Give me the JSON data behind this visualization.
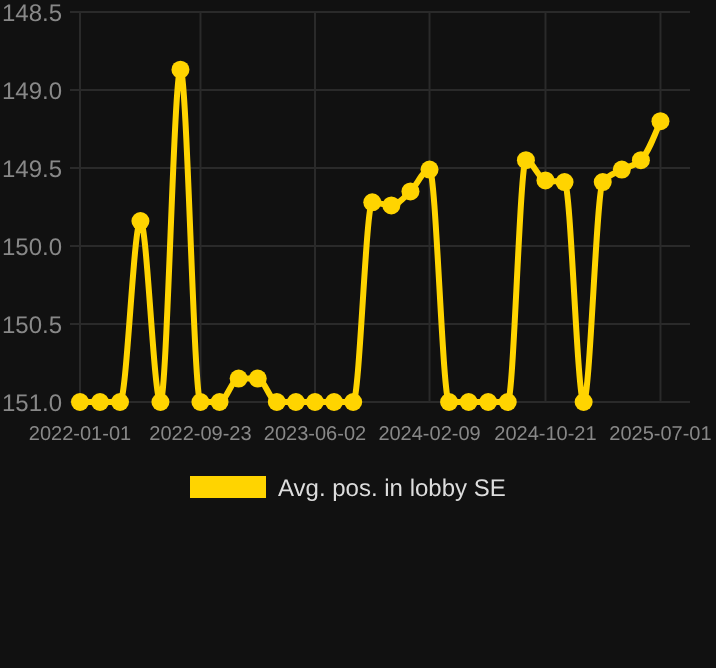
{
  "chart_data": {
    "type": "line",
    "x": [
      "2022-01-01",
      "2022-02-14",
      "2022-03-30",
      "2022-05-14",
      "2022-06-27",
      "2022-08-10",
      "2022-09-23",
      "2022-11-04",
      "2022-12-16",
      "2023-01-27",
      "2023-03-10",
      "2023-04-21",
      "2023-06-02",
      "2023-07-14",
      "2023-08-25",
      "2023-10-06",
      "2023-11-17",
      "2023-12-29",
      "2024-02-09",
      "2024-03-23",
      "2024-05-05",
      "2024-06-17",
      "2024-07-30",
      "2024-09-08",
      "2024-10-21",
      "2024-12-02",
      "2025-01-13",
      "2025-02-24",
      "2025-04-07",
      "2025-05-19",
      "2025-07-01"
    ],
    "series": [
      {
        "name": "Avg. pos. in lobby SE",
        "color": "#ffd400",
        "values": [
          151.0,
          151.0,
          151.0,
          149.84,
          151.0,
          148.87,
          151.0,
          151.0,
          150.85,
          150.85,
          151.0,
          151.0,
          151.0,
          151.0,
          151.0,
          149.72,
          149.74,
          149.65,
          149.51,
          151.0,
          151.0,
          151.0,
          151.0,
          149.45,
          149.58,
          149.59,
          151.0,
          149.59,
          149.51,
          149.45,
          149.2
        ]
      }
    ],
    "xlim": [
      "2021-12-10",
      "2025-09-04"
    ],
    "xticks": [
      "2022-01-01",
      "2022-09-23",
      "2023-06-02",
      "2024-02-09",
      "2024-10-21",
      "2025-07-01"
    ],
    "ylim": [
      151.0,
      148.5
    ],
    "yticks": [
      {
        "value": 148.5,
        "label": "148.5"
      },
      {
        "value": 149,
        "label": "149.0"
      },
      {
        "value": 149.5,
        "label": "149.5"
      },
      {
        "value": 150,
        "label": "150.0"
      },
      {
        "value": 150.5,
        "label": "150.5"
      },
      {
        "value": 151,
        "label": "151.0"
      }
    ],
    "grid": true,
    "legend": "bottom",
    "marker": "circle",
    "line_style": "solid"
  }
}
